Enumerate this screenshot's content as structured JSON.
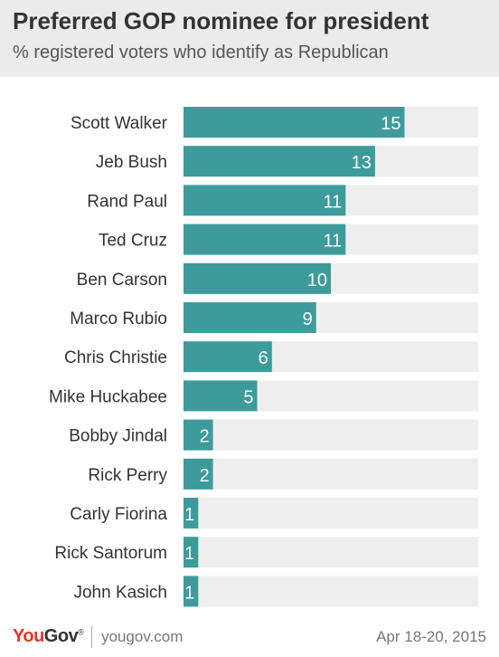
{
  "header": {
    "title": "Preferred GOP nominee for president",
    "subtitle": "% registered voters who identify as Republican"
  },
  "footer": {
    "logo_you": "You",
    "logo_gov": "Gov",
    "logo_mark": "®",
    "site": "yougov.com",
    "date": "Apr 18-20, 2015"
  },
  "colors": {
    "bar": "#3d9b9b",
    "track": "#eeeeee",
    "header_bg": "#ebebeb",
    "brand_red": "#e5332a"
  },
  "chart_data": {
    "type": "bar",
    "orientation": "horizontal",
    "title": "Preferred GOP nominee for president",
    "subtitle": "% registered voters who identify as Republican",
    "categories": [
      "Scott Walker",
      "Jeb Bush",
      "Rand Paul",
      "Ted Cruz",
      "Ben Carson",
      "Marco Rubio",
      "Chris Christie",
      "Mike Huckabee",
      "Bobby Jindal",
      "Rick Perry",
      "Carly Fiorina",
      "Rick Santorum",
      "John Kasich"
    ],
    "values": [
      15,
      13,
      11,
      11,
      10,
      9,
      6,
      5,
      2,
      2,
      1,
      1,
      1
    ],
    "xlim": [
      0,
      20
    ],
    "data_labels": true,
    "grid": false,
    "legend": "none"
  }
}
